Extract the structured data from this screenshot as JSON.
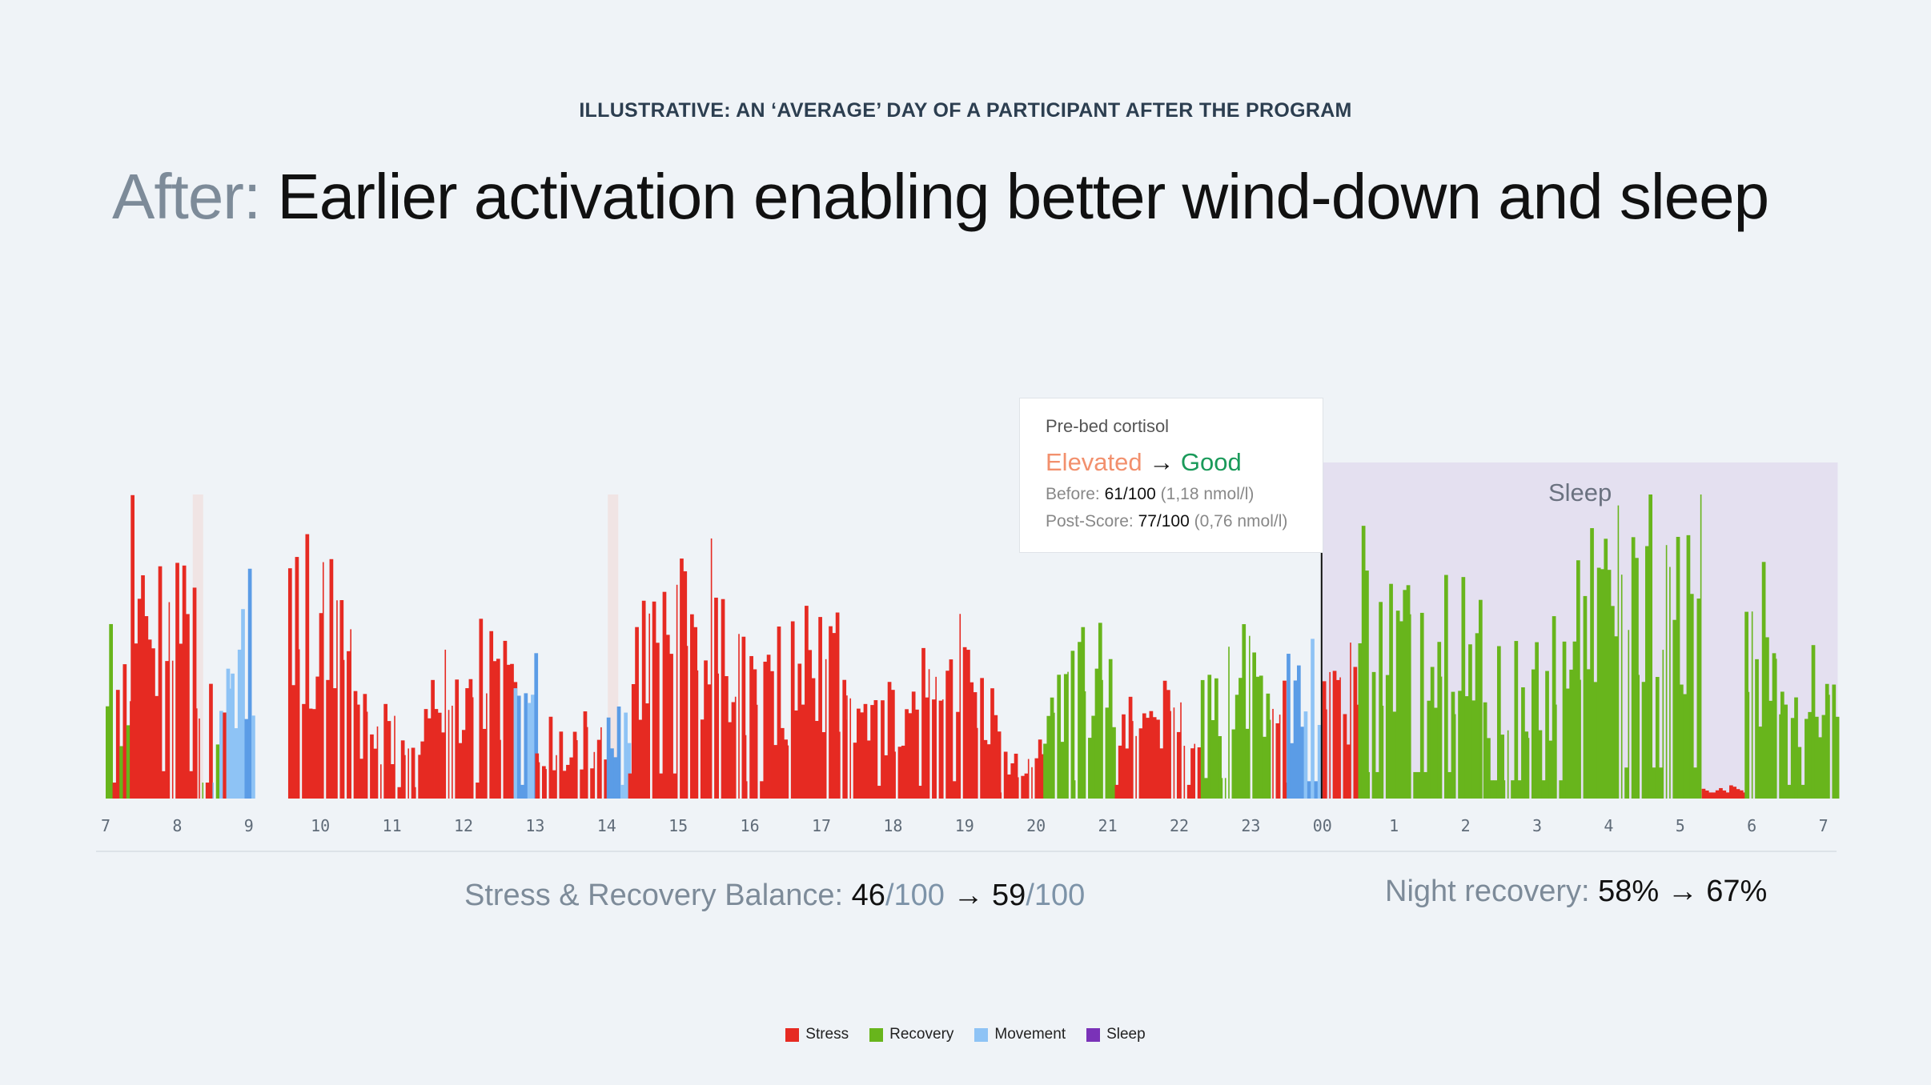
{
  "eyebrow": "ILLUSTRATIVE: AN ‘AVERAGE’ DAY OF A PARTICIPANT AFTER THE PROGRAM",
  "headline": {
    "prefix": "After:",
    "text": " Earlier activation enabling better wind-down and sleep"
  },
  "tooltip": {
    "title": "Pre-bed cortisol",
    "from": "Elevated",
    "arrow": " → ",
    "to": "Good",
    "before_label": "Before:",
    "before_value": "61/100",
    "before_unit": "(1,18 nmol/l)",
    "post_label": "Post-Score:",
    "post_value": "77/100",
    "post_unit": "(0,76 nmol/l)"
  },
  "sleep_label": "Sleep",
  "balance": {
    "label": "Stress & Recovery Balance:",
    "before": "46",
    "before_unit": "/100",
    "arrow": " → ",
    "after": "59",
    "after_unit": "/100"
  },
  "night": {
    "label": "Night recovery:",
    "value": "58% → 67%"
  },
  "legend": [
    {
      "label": "Stress",
      "color": "#e62a22"
    },
    {
      "label": "Recovery",
      "color": "#68b51c"
    },
    {
      "label": "Movement",
      "color": "#8ec3f5"
    },
    {
      "label": "Sleep",
      "color": "#7a32b8"
    }
  ],
  "chart_data": {
    "type": "bar",
    "x_ticks": [
      "7",
      "8",
      "9",
      "10",
      "11",
      "12",
      "13",
      "14",
      "15",
      "16",
      "17",
      "18",
      "19",
      "20",
      "21",
      "22",
      "23",
      "00",
      "1",
      "2",
      "3",
      "4",
      "5",
      "6",
      "7"
    ],
    "colors": {
      "stress": "#e62a22",
      "recovery": "#68b51c",
      "movement": "#8ec3f5",
      "movement_dark": "#5b9ce6",
      "sleep_band": "#e4e0f0",
      "marker": "#f0e4e4"
    },
    "sleep_range": [
      17,
      24.2
    ],
    "now_marker": 17,
    "markers": [
      1.25,
      7.05
    ],
    "segments": [
      {
        "from": 0,
        "to": 0.35,
        "type": "mix",
        "level": 0.35
      },
      {
        "from": 0.35,
        "to": 1.3,
        "type": "stress",
        "level": 0.6
      },
      {
        "from": 1.3,
        "to": 1.7,
        "type": "mix",
        "level": 0.35
      },
      {
        "from": 1.7,
        "to": 2.05,
        "type": "movement",
        "level": 0.45
      },
      {
        "from": 2.55,
        "to": 3.5,
        "type": "stress",
        "level": 0.62
      },
      {
        "from": 3.5,
        "to": 4.4,
        "type": "stress",
        "level": 0.25
      },
      {
        "from": 4.4,
        "to": 5.7,
        "type": "stress",
        "level": 0.35
      },
      {
        "from": 5.7,
        "to": 6.0,
        "type": "movement",
        "level": 0.3
      },
      {
        "from": 6.0,
        "to": 7.0,
        "type": "stress",
        "level": 0.18
      },
      {
        "from": 7.0,
        "to": 7.3,
        "type": "movement",
        "level": 0.3
      },
      {
        "from": 7.3,
        "to": 8.9,
        "type": "stress",
        "level": 0.55
      },
      {
        "from": 8.9,
        "to": 10.3,
        "type": "stress",
        "level": 0.38
      },
      {
        "from": 10.3,
        "to": 11.4,
        "type": "stress",
        "level": 0.28
      },
      {
        "from": 11.4,
        "to": 12.5,
        "type": "stress",
        "level": 0.38
      },
      {
        "from": 12.5,
        "to": 13.1,
        "type": "stress",
        "level": 0.12
      },
      {
        "from": 13.1,
        "to": 14.1,
        "type": "recovery",
        "level": 0.4
      },
      {
        "from": 14.1,
        "to": 15.3,
        "type": "stress",
        "level": 0.3
      },
      {
        "from": 15.3,
        "to": 16.3,
        "type": "recovery",
        "level": 0.45
      },
      {
        "from": 16.3,
        "to": 16.5,
        "type": "stress",
        "level": 0.35
      },
      {
        "from": 16.5,
        "to": 17.0,
        "type": "movement",
        "level": 0.38
      },
      {
        "from": 17.0,
        "to": 17.5,
        "type": "stress",
        "level": 0.35
      },
      {
        "from": 17.5,
        "to": 19.2,
        "type": "recovery",
        "level": 0.58
      },
      {
        "from": 19.2,
        "to": 20.5,
        "type": "recovery",
        "level": 0.4
      },
      {
        "from": 20.5,
        "to": 22.3,
        "type": "recovery",
        "level": 0.68
      },
      {
        "from": 22.3,
        "to": 22.9,
        "type": "stress",
        "level": 0.03
      },
      {
        "from": 22.9,
        "to": 23.4,
        "type": "recovery",
        "level": 0.5
      },
      {
        "from": 23.4,
        "to": 24.2,
        "type": "recovery",
        "level": 0.3
      }
    ]
  }
}
